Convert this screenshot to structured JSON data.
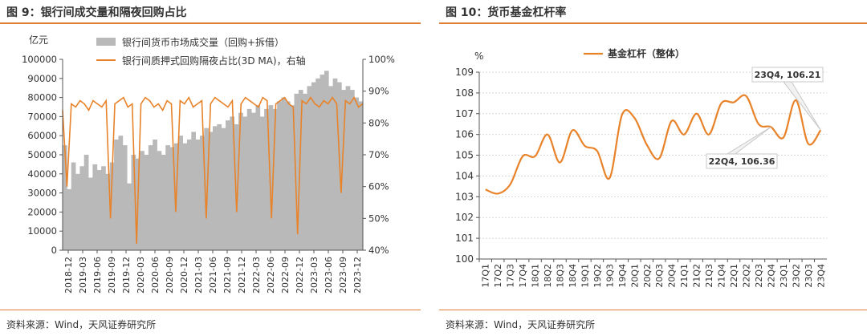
{
  "left": {
    "title": "图 9：银行间成交量和隔夜回购占比",
    "source": "资料来源：Wind，天风证券研究所",
    "colors": {
      "bar": "#b9b9b9",
      "line": "#e8832a"
    },
    "chart_data": {
      "type": "bar",
      "ylabel_left": "亿元",
      "ylim_left": [
        0,
        100000
      ],
      "ylim_right": [
        40,
        100
      ],
      "left_ticks": [
        "0",
        "10000",
        "20000",
        "30000",
        "40000",
        "50000",
        "60000",
        "70000",
        "80000",
        "90000",
        "100000"
      ],
      "right_ticks": [
        "40%",
        "50%",
        "60%",
        "70%",
        "80%",
        "90%",
        "100%"
      ],
      "legend": [
        "银行间货币市场成交量（回购+拆借）",
        "银行间质押式回购隔夜占比(3D MA)，右轴"
      ],
      "x_tick_labels": [
        "2018-12",
        "2019-03",
        "2019-06",
        "2019-09",
        "2019-12",
        "2020-03",
        "2020-06",
        "2020-09",
        "2020-12",
        "2021-03",
        "2021-06",
        "2021-09",
        "2021-12",
        "2022-03",
        "2022-06",
        "2022-09",
        "2022-12",
        "2023-03",
        "2023-06",
        "2023-09",
        "2023-12"
      ],
      "series": [
        {
          "name": "银行间货币市场成交量（回购+拆借）",
          "type": "bar",
          "axis": "left",
          "values": [
            55000,
            32000,
            46000,
            40000,
            44000,
            50000,
            38000,
            45000,
            42000,
            44000,
            40000,
            46000,
            58000,
            60000,
            55000,
            35000,
            50000,
            48000,
            52000,
            50000,
            55000,
            58000,
            52000,
            50000,
            55000,
            54000,
            56000,
            60000,
            56000,
            58000,
            62000,
            58000,
            60000,
            64000,
            62000,
            65000,
            66000,
            64000,
            68000,
            70000,
            66000,
            72000,
            70000,
            74000,
            72000,
            76000,
            70000,
            74000,
            76000,
            74000,
            78000,
            80000,
            78000,
            76000,
            82000,
            84000,
            82000,
            86000,
            88000,
            90000,
            92000,
            94000,
            86000,
            90000,
            88000,
            84000,
            86000,
            84000,
            80000,
            78000
          ]
        },
        {
          "name": "银行间质押式回购隔夜占比(3D MA)，右轴",
          "type": "line",
          "axis": "right",
          "values": [
            84,
            60,
            86,
            85,
            87,
            86,
            84,
            87,
            86,
            85,
            87,
            50,
            86,
            87,
            88,
            85,
            86,
            42,
            86,
            88,
            87,
            85,
            86,
            84,
            87,
            86,
            52,
            87,
            86,
            88,
            85,
            86,
            87,
            50,
            86,
            88,
            87,
            86,
            85,
            87,
            52,
            86,
            88,
            87,
            86,
            85,
            88,
            87,
            50,
            86,
            87,
            88,
            86,
            85,
            45,
            87,
            86,
            88,
            86,
            85,
            87,
            86,
            88,
            86,
            58,
            87,
            86,
            88,
            85,
            86
          ]
        }
      ]
    }
  },
  "right": {
    "title": "图 10：货币基金杠杆率",
    "source": "资料来源：Wind，天风证券研究所",
    "colors": {
      "line": "#e8832a",
      "callout_border": "#c8c8c8",
      "grid": "#d8d8d8"
    },
    "chart_data": {
      "type": "line",
      "ylabel": "%",
      "ylim": [
        100,
        109
      ],
      "yticks": [
        "100",
        "101",
        "102",
        "103",
        "104",
        "105",
        "106",
        "107",
        "108",
        "109"
      ],
      "grid": true,
      "categories": [
        "17Q1",
        "17Q2",
        "17Q3",
        "17Q4",
        "18Q1",
        "18Q2",
        "18Q3",
        "18Q4",
        "19Q1",
        "19Q2",
        "19Q3",
        "19Q4",
        "20Q1",
        "20Q2",
        "20Q3",
        "20Q4",
        "21Q1",
        "21Q2",
        "21Q3",
        "21Q4",
        "22Q1",
        "22Q2",
        "22Q3",
        "22Q4",
        "23Q1",
        "23Q2",
        "23Q3",
        "23Q4"
      ],
      "series": [
        {
          "name": "基金杠杆（整体）",
          "values": [
            103.35,
            103.15,
            103.6,
            104.95,
            104.95,
            106.0,
            104.65,
            106.2,
            105.45,
            105.2,
            103.9,
            106.95,
            106.8,
            105.5,
            104.85,
            106.65,
            106.0,
            107.0,
            106.0,
            107.5,
            107.55,
            107.85,
            106.5,
            106.36,
            105.85,
            107.65,
            105.55,
            106.21
          ]
        }
      ],
      "annotations": [
        {
          "label": "23Q4, 106.21",
          "category": "23Q4",
          "value": 106.21
        },
        {
          "label": "22Q4, 106.36",
          "category": "22Q4",
          "value": 106.36
        }
      ]
    }
  }
}
